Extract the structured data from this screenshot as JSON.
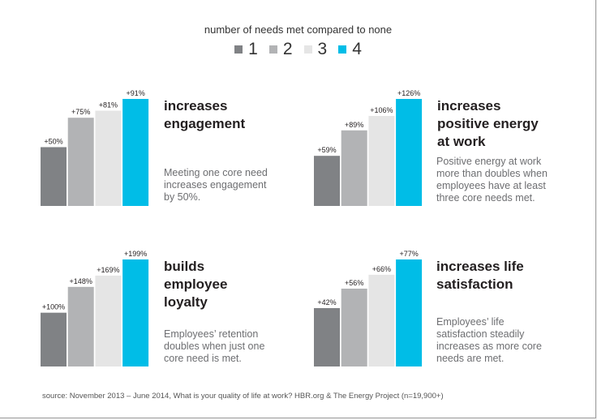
{
  "legend": {
    "title": "number of needs met compared to none",
    "items": [
      {
        "label": "1",
        "color": "#808285"
      },
      {
        "label": "2",
        "color": "#b2b3b5"
      },
      {
        "label": "3",
        "color": "#e5e5e5"
      },
      {
        "label": "4",
        "color": "#00bde7"
      }
    ]
  },
  "panels": [
    {
      "heading_lines": [
        "increases",
        "engagement"
      ],
      "description_lines": [
        "Meeting one core need",
        "increases engagement",
        "by 50%."
      ]
    },
    {
      "heading_lines": [
        "increases",
        "positive energy",
        "at work"
      ],
      "description_lines": [
        "Positive energy at work",
        "more than doubles when",
        "employees have at least",
        "three core needs met."
      ]
    },
    {
      "heading_lines": [
        "builds",
        "employee",
        "loyalty"
      ],
      "description_lines": [
        "Employees’ retention",
        "doubles when just one",
        "core need is met."
      ]
    },
    {
      "heading_lines": [
        "increases life",
        "satisfaction"
      ],
      "description_lines": [
        "Employees’ life",
        "satisfaction steadily",
        "increases as more core",
        "needs are met."
      ]
    }
  ],
  "chart_data": [
    {
      "type": "bar",
      "title": "increases engagement",
      "categories": [
        "1",
        "2",
        "3",
        "4"
      ],
      "values": [
        50,
        75,
        81,
        91
      ],
      "labels": [
        "+50%",
        "+75%",
        "+81%",
        "+91%"
      ],
      "colors": [
        "#808285",
        "#b2b3b5",
        "#e5e5e5",
        "#00bde7"
      ],
      "ylim": [
        0,
        91
      ]
    },
    {
      "type": "bar",
      "title": "increases positive energy at work",
      "categories": [
        "1",
        "2",
        "3",
        "4"
      ],
      "values": [
        59,
        89,
        106,
        126
      ],
      "labels": [
        "+59%",
        "+89%",
        "+106%",
        "+126%"
      ],
      "colors": [
        "#808285",
        "#b2b3b5",
        "#e5e5e5",
        "#00bde7"
      ],
      "ylim": [
        0,
        126
      ]
    },
    {
      "type": "bar",
      "title": "builds employee loyalty",
      "categories": [
        "1",
        "2",
        "3",
        "4"
      ],
      "values": [
        100,
        148,
        169,
        199
      ],
      "labels": [
        "+100%",
        "+148%",
        "+169%",
        "+199%"
      ],
      "colors": [
        "#808285",
        "#b2b3b5",
        "#e5e5e5",
        "#00bde7"
      ],
      "ylim": [
        0,
        199
      ]
    },
    {
      "type": "bar",
      "title": "increases life satisfaction",
      "categories": [
        "1",
        "2",
        "3",
        "4"
      ],
      "values": [
        42,
        56,
        66,
        77
      ],
      "labels": [
        "+42%",
        "+56%",
        "+66%",
        "+77%"
      ],
      "colors": [
        "#808285",
        "#b2b3b5",
        "#e5e5e5",
        "#00bde7"
      ],
      "ylim": [
        0,
        77
      ]
    }
  ],
  "source": "source: November 2013 – June  2014, What is your quality of life at work? HBR.org & The Energy Project (n=19,900+)"
}
